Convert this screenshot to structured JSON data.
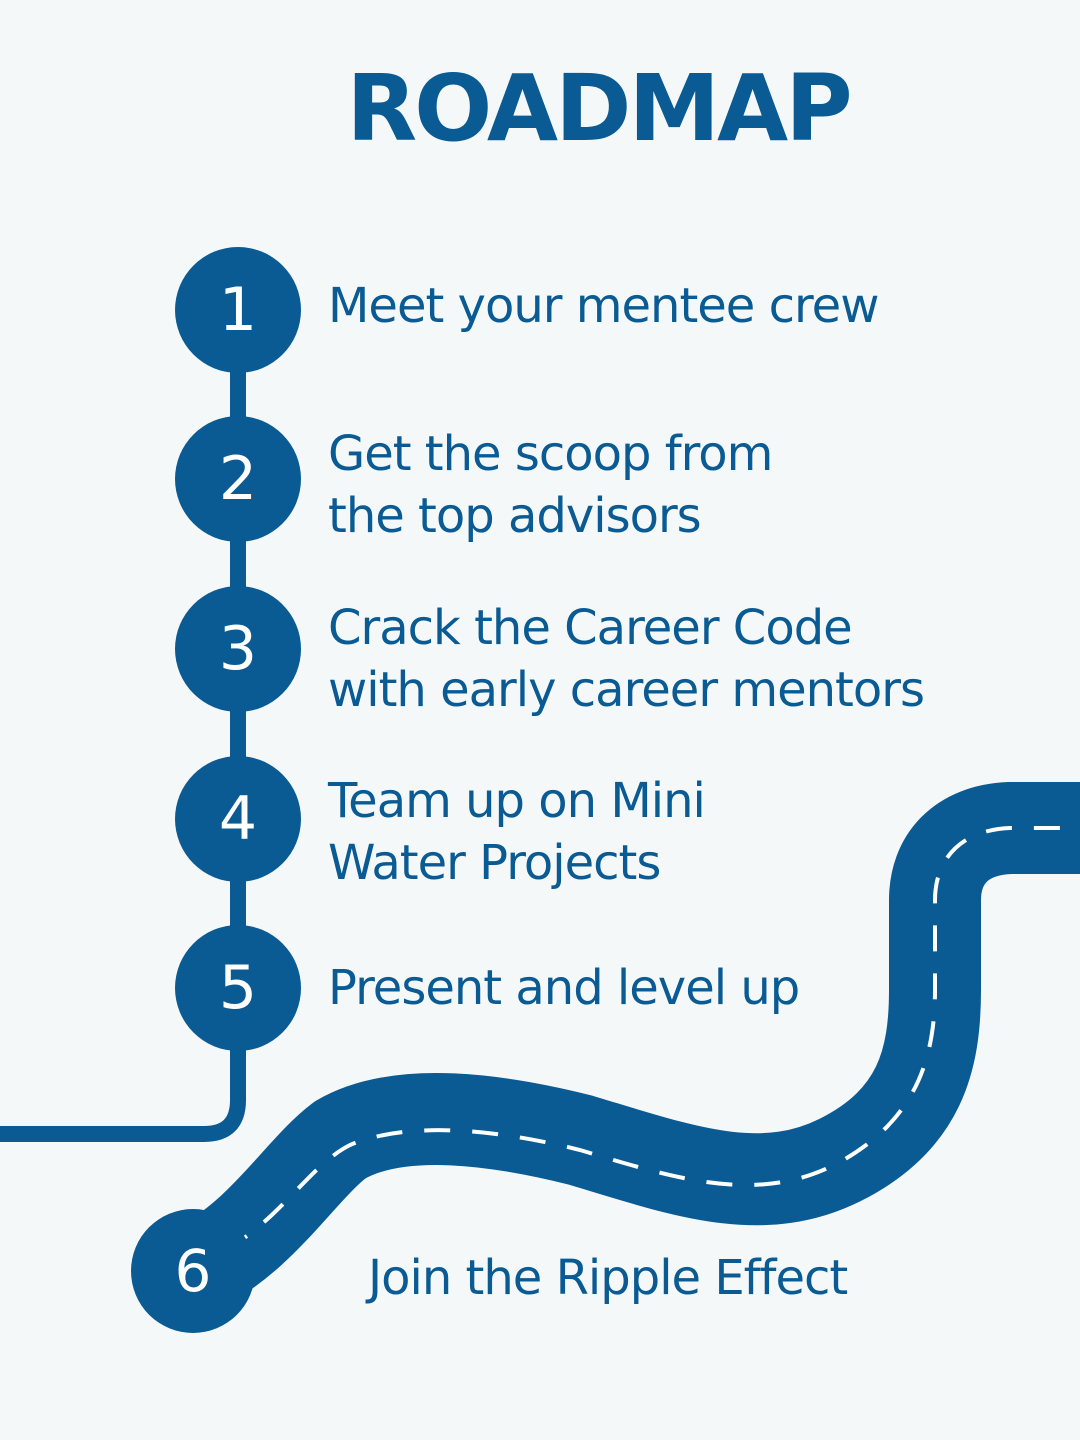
{
  "title": "ROADMAP",
  "colors": {
    "primary": "#0a5b93",
    "background": "#f5f8f9",
    "road_marking": "#ffffff"
  },
  "steps": [
    {
      "number": "1",
      "lines": [
        "Meet your mentee crew"
      ]
    },
    {
      "number": "2",
      "lines": [
        "Get the scoop from",
        "the top advisors"
      ]
    },
    {
      "number": "3",
      "lines": [
        "Crack the Career Code",
        "with early career mentors"
      ]
    },
    {
      "number": "4",
      "lines": [
        "Team up on Mini",
        "Water Projects"
      ]
    },
    {
      "number": "5",
      "lines": [
        "Present and level up"
      ]
    }
  ],
  "final_step": {
    "number": "6",
    "label": "Join the Ripple Effect"
  }
}
